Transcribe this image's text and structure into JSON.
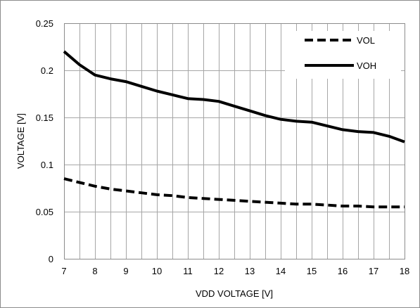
{
  "chart_data": {
    "type": "line",
    "xlabel": "VDD VOLTAGE [V]",
    "ylabel": "VOLTAGE [V]",
    "xlim": [
      7,
      18
    ],
    "ylim": [
      0,
      0.25
    ],
    "x_ticks": [
      7,
      8,
      9,
      10,
      11,
      12,
      13,
      14,
      15,
      16,
      17,
      18
    ],
    "y_ticks": [
      0,
      0.05,
      0.1,
      0.15,
      0.2,
      0.25
    ],
    "y_tick_labels": [
      "0",
      "0.05",
      "0.1",
      "0.15",
      "0.2",
      "0.25"
    ],
    "x_minor_step": 0.5,
    "grid": true,
    "legend_position": "top-right",
    "series": [
      {
        "name": "VOL",
        "style": "dashed",
        "color": "#000000",
        "x": [
          7,
          7.5,
          8,
          8.5,
          9,
          9.5,
          10,
          10.5,
          11,
          11.5,
          12,
          12.5,
          13,
          13.5,
          14,
          14.5,
          15,
          15.5,
          16,
          16.5,
          17,
          17.5,
          18
        ],
        "values": [
          0.085,
          0.081,
          0.077,
          0.074,
          0.072,
          0.07,
          0.068,
          0.067,
          0.065,
          0.064,
          0.063,
          0.062,
          0.061,
          0.06,
          0.059,
          0.058,
          0.058,
          0.057,
          0.056,
          0.056,
          0.055,
          0.055,
          0.055
        ]
      },
      {
        "name": "VOH",
        "style": "solid",
        "color": "#000000",
        "x": [
          7,
          7.5,
          8,
          8.5,
          9,
          9.5,
          10,
          10.5,
          11,
          11.5,
          12,
          12.5,
          13,
          13.5,
          14,
          14.5,
          15,
          15.5,
          16,
          16.5,
          17,
          17.5,
          18
        ],
        "values": [
          0.22,
          0.206,
          0.195,
          0.191,
          0.188,
          0.183,
          0.178,
          0.174,
          0.17,
          0.169,
          0.167,
          0.162,
          0.157,
          0.152,
          0.148,
          0.146,
          0.145,
          0.141,
          0.137,
          0.135,
          0.134,
          0.13,
          0.124
        ]
      }
    ]
  }
}
